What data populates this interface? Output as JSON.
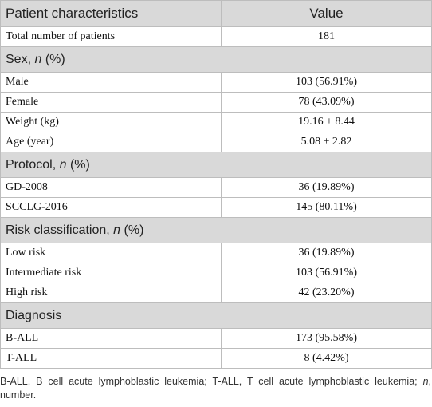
{
  "table": {
    "header": [
      "Patient characteristics",
      "Value"
    ],
    "rows": [
      {
        "cells": [
          "Total number of patients",
          "181"
        ]
      },
      {
        "heading": [
          "Sex, ",
          "n",
          " (%)"
        ]
      },
      {
        "cells": [
          "Male",
          "103 (56.91%)"
        ]
      },
      {
        "cells": [
          "Female",
          "78 (43.09%)"
        ]
      },
      {
        "cells": [
          "Weight (kg)",
          "19.16 ± 8.44"
        ]
      },
      {
        "cells": [
          "Age (year)",
          "5.08 ± 2.82"
        ]
      },
      {
        "heading": [
          "Protocol, ",
          "n",
          " (%)"
        ]
      },
      {
        "cells": [
          "GD-2008",
          "36 (19.89%)"
        ]
      },
      {
        "cells": [
          "SCCLG-2016",
          "145 (80.11%)"
        ]
      },
      {
        "heading": [
          "Risk classification, ",
          "n",
          " (%)"
        ]
      },
      {
        "cells": [
          "Low risk",
          "36 (19.89%)"
        ]
      },
      {
        "cells": [
          "Intermediate risk",
          "103 (56.91%)"
        ]
      },
      {
        "cells": [
          "High risk",
          "42 (23.20%)"
        ]
      },
      {
        "heading": [
          "Diagnosis"
        ]
      },
      {
        "cells": [
          "B-ALL",
          "173 (95.58%)"
        ]
      },
      {
        "cells": [
          "T-ALL",
          "8 (4.42%)"
        ]
      }
    ],
    "footnote": [
      "B-ALL, B cell acute lymphoblastic leukemia; T-ALL, T cell acute lymphoblastic leukemia; ",
      "n",
      ", number."
    ]
  }
}
